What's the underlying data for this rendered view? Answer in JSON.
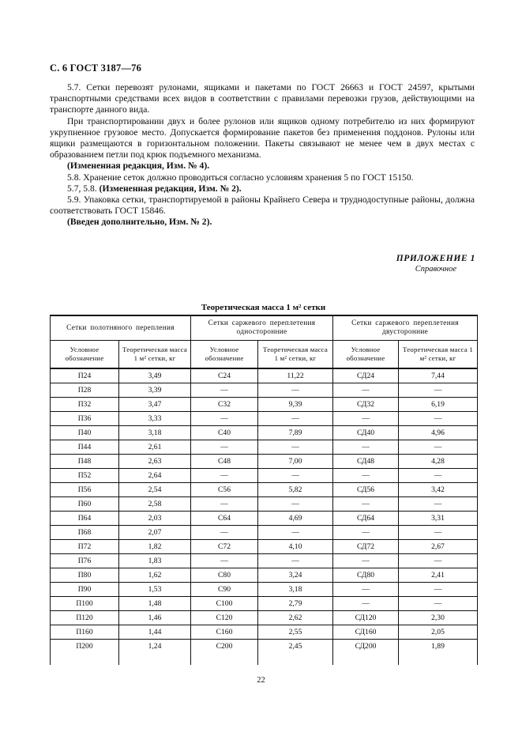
{
  "page": {
    "header": "С. 6 ГОСТ 3187—76",
    "page_number": "22"
  },
  "document": {
    "paragraphs": [
      {
        "segments": [
          {
            "text": "5.7. Сетки перевозят рулонами, ящиками и пакетами по ГОСТ 26663 и ГОСТ 24597, крытыми транспортными средствами всех видов в соответствии с правилами перевозки грузов, действующими на транспорте данного вида.",
            "bold": false
          }
        ]
      },
      {
        "segments": [
          {
            "text": "При транспортировании двух и более рулонов или ящиков одному потребителю из них формируют укрупненное грузовое место. Допускается формирование пакетов без применения поддонов. Рулоны или ящики размещаются в горизонтальном положении. Пакеты связывают не менее чем в двух местах с образованием петли под крюк подъемного механизма.",
            "bold": false
          }
        ]
      },
      {
        "segments": [
          {
            "text": "(Измененная редакция, Изм. № 4).",
            "bold": true
          }
        ]
      },
      {
        "segments": [
          {
            "text": "5.8. Хранение сеток должно проводиться согласно условиям хранения 5 по ГОСТ 15150.",
            "bold": false
          }
        ]
      },
      {
        "segments": [
          {
            "text": "5.7, 5.8. ",
            "bold": false
          },
          {
            "text": "(Измененная редакция, Изм. № 2).",
            "bold": true
          }
        ]
      },
      {
        "segments": [
          {
            "text": "5.9. Упаковка сетки, транспортируемой в районы Крайнего Севера и труднодоступные районы, должна соответствовать ГОСТ 15846.",
            "bold": false
          }
        ]
      },
      {
        "segments": [
          {
            "text": "(Введен дополнительно, Изм. № 2).",
            "bold": true
          }
        ]
      }
    ]
  },
  "appendix": {
    "title": "ПРИЛОЖЕНИЕ 1",
    "subtitle": "Справочное"
  },
  "table": {
    "title": "Теоретическая масса 1 м² сетки",
    "groups": [
      "Сетки полотняного перепления",
      "Сетки саржевого переплетения односторонние",
      "Сетки саржевого переплетения двусторонние"
    ],
    "col_headers": [
      "Условное обозначение",
      "Теоретическая масса 1 м² сетки, кг",
      "Условное обозначение",
      "Теоретическая масса 1 м² сетки, кг",
      "Условное обозначение",
      "Теоретическая масса 1 м² сетки, кг"
    ],
    "rows": [
      [
        "П24",
        "3,49",
        "С24",
        "11,22",
        "СД24",
        "7,44"
      ],
      [
        "П28",
        "3,39",
        "—",
        "—",
        "—",
        "—"
      ],
      [
        "П32",
        "3,47",
        "С32",
        "9,39",
        "СД32",
        "6,19"
      ],
      [
        "П36",
        "3,33",
        "—",
        "—",
        "—",
        "—"
      ],
      [
        "П40",
        "3,18",
        "С40",
        "7,89",
        "СД40",
        "4,96"
      ],
      [
        "П44",
        "2,61",
        "—",
        "—",
        "—",
        "—"
      ],
      [
        "П48",
        "2,63",
        "С48",
        "7,00",
        "СД48",
        "4,28"
      ],
      [
        "П52",
        "2,64",
        "—",
        "—",
        "—",
        "—"
      ],
      [
        "П56",
        "2,54",
        "С56",
        "5,82",
        "СД56",
        "3,42"
      ],
      [
        "П60",
        "2,58",
        "—",
        "—",
        "—",
        "—"
      ],
      [
        "П64",
        "2,03",
        "С64",
        "4,69",
        "СД64",
        "3,31"
      ],
      [
        "П68",
        "2,07",
        "—",
        "—",
        "—",
        "—"
      ],
      [
        "П72",
        "1,82",
        "С72",
        "4,10",
        "СД72",
        "2,67"
      ],
      [
        "П76",
        "1,83",
        "—",
        "—",
        "—",
        "—"
      ],
      [
        "П80",
        "1,62",
        "С80",
        "3,24",
        "СД80",
        "2,41"
      ],
      [
        "П90",
        "1,53",
        "С90",
        "3,18",
        "—",
        "—"
      ],
      [
        "П100",
        "1,48",
        "С100",
        "2,79",
        "—",
        "—"
      ],
      [
        "П120",
        "1,46",
        "С120",
        "2,62",
        "СД120",
        "2,30"
      ],
      [
        "П160",
        "1,44",
        "С160",
        "2,55",
        "СД160",
        "2,05"
      ],
      [
        "П200",
        "1,24",
        "С200",
        "2,45",
        "СД200",
        "1,89"
      ]
    ]
  }
}
